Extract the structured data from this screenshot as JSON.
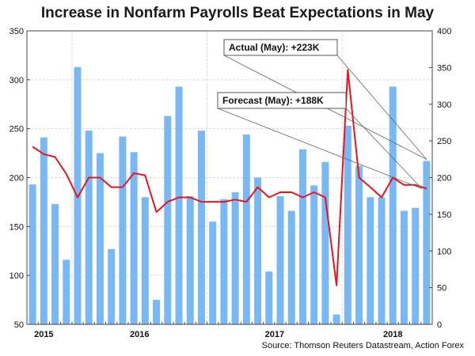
{
  "chart_data": {
    "type": "bar",
    "title": "Increase in Nonfarm Payrolls Beat Expectations in May",
    "source": "Source: Thomson Reuters Datastream, Action Forex",
    "colors": {
      "bars": "#79b8f4",
      "line": "#e8141b",
      "axis": "#444444"
    },
    "x_ticks": [
      "2015",
      "2016",
      "2017",
      "2018"
    ],
    "y_left": {
      "lim": [
        50,
        350
      ],
      "ticks": [
        50,
        100,
        150,
        200,
        250,
        300,
        350
      ]
    },
    "y_right": {
      "lim": [
        0,
        400
      ],
      "ticks": [
        0,
        50,
        100,
        150,
        200,
        250,
        300,
        350,
        400
      ]
    },
    "series": [
      {
        "axis": "left",
        "type": "bar",
        "values": [
          193,
          241,
          173,
          116,
          313,
          248,
          225,
          127,
          242,
          226,
          180,
          75,
          263,
          293,
          181,
          248,
          155,
          178,
          185,
          244,
          200,
          104,
          181,
          166,
          229,
          192,
          216,
          60,
          253,
          212,
          180,
          180,
          293,
          166,
          169,
          217
        ]
      },
      {
        "axis": "right",
        "type": "line",
        "values": [
          242,
          232,
          228,
          205,
          173,
          200,
          200,
          187,
          187,
          206,
          203,
          153,
          167,
          173,
          173,
          167,
          167,
          167,
          170,
          167,
          187,
          173,
          180,
          180,
          173,
          180,
          173,
          53,
          347,
          200,
          187,
          173,
          200,
          190,
          190,
          185
        ]
      }
    ],
    "annotations": [
      {
        "text": "Actual (May): +223K"
      },
      {
        "text": "Forecast (May): +188K"
      }
    ],
    "grid": true
  }
}
